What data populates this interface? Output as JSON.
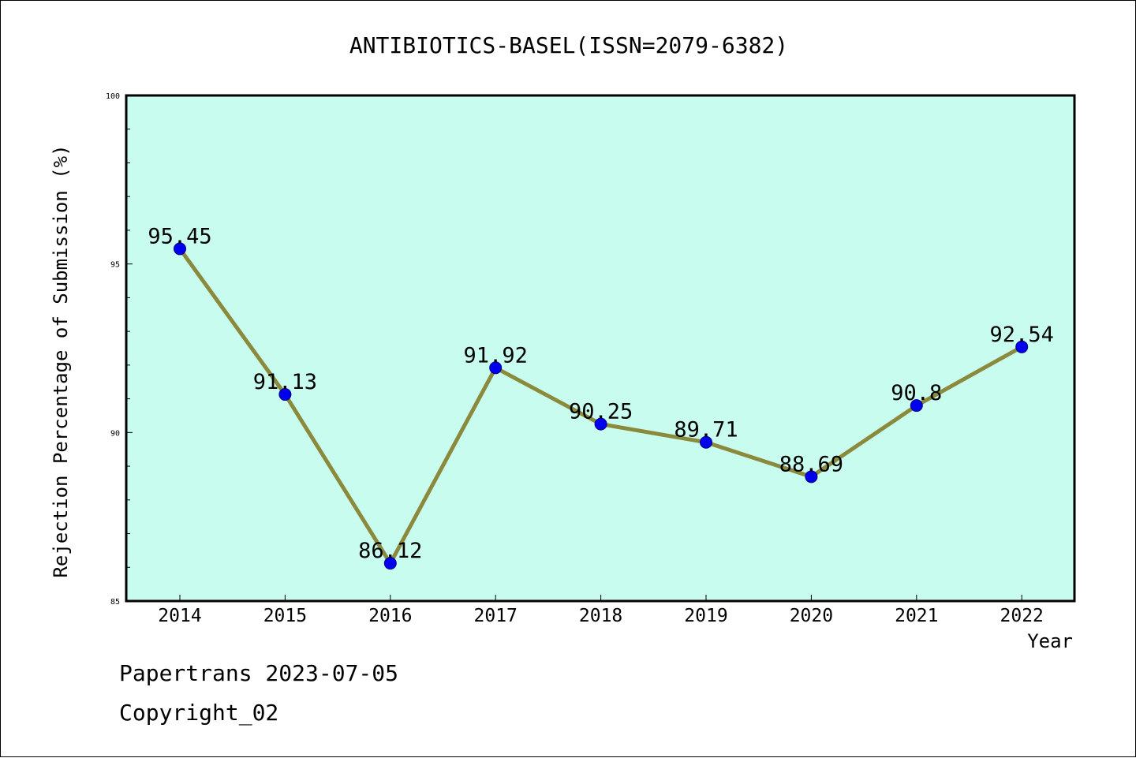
{
  "chart_data": {
    "type": "line",
    "title": "ANTIBIOTICS-BASEL(ISSN=2079-6382)",
    "xlabel": "Year",
    "ylabel": "Rejection Percentage of Submission (%)",
    "categories": [
      "2014",
      "2015",
      "2016",
      "2017",
      "2018",
      "2019",
      "2020",
      "2021",
      "2022"
    ],
    "values": [
      95.45,
      91.13,
      86.12,
      91.92,
      90.25,
      89.71,
      88.69,
      90.8,
      92.54
    ],
    "data_labels": [
      "95.45",
      "91.13",
      "86.12",
      "91.92",
      "90.25",
      "89.71",
      "88.69",
      "90.8",
      "92.54"
    ],
    "ylim": [
      85,
      100
    ],
    "y_ticks": [
      85,
      90,
      95,
      100
    ],
    "y_tick_labels": [
      "85",
      "90",
      "95",
      "100"
    ],
    "grid": false,
    "colors": {
      "plot_background": "#c8fcee",
      "line": "#8b8a3c",
      "marker": "#0000ee"
    }
  },
  "footer": {
    "line1": "Papertrans 2023-07-05",
    "line2": "Copyright_02"
  }
}
